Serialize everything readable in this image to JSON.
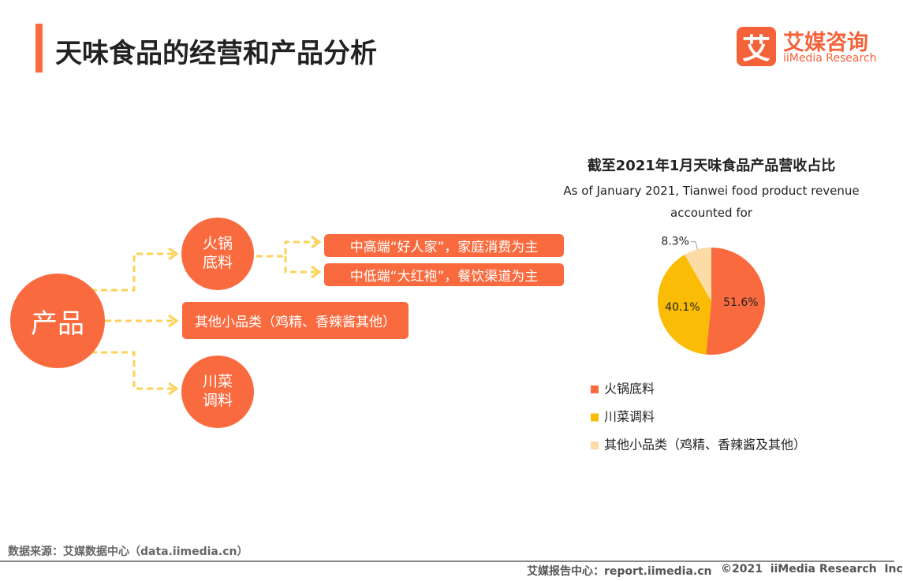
{
  "header": {
    "title": "天味食品的经营和产品分析",
    "logo_mark": "艾",
    "logo_cn": "艾媒咨询",
    "logo_en": "iiMedia Research"
  },
  "diagram": {
    "root": "产品",
    "hotpot": "火锅底料",
    "sichuan": "川菜调料",
    "high_end": "中高端“好人家”，家庭消费为主",
    "low_end": "中低端“大红袍”，餐饮渠道为主",
    "other": "其他小品类（鸡精、香辣酱其他）"
  },
  "chart_data": {
    "type": "pie",
    "title": "截至2021年1月天味食品产品营收占比",
    "subtitle": "As of January 2021, Tianwei food product revenue accounted for",
    "categories": [
      "火锅底料",
      "川菜调料",
      "其他小品类（鸡精、香辣酱及其他）"
    ],
    "values": [
      51.6,
      40.1,
      8.3
    ],
    "value_labels": [
      "51.6%",
      "40.1%",
      "8.3%"
    ],
    "colors": [
      "#f96b3f",
      "#fbbc05",
      "#fcdca6"
    ]
  },
  "footer": {
    "source": "数据来源：艾媒数据中心（data.iimedia.cn）",
    "copyright_left": "艾媒报告中心：report.iimedia.cn",
    "copyright_right": "©2021  iiMedia Research  Inc"
  }
}
